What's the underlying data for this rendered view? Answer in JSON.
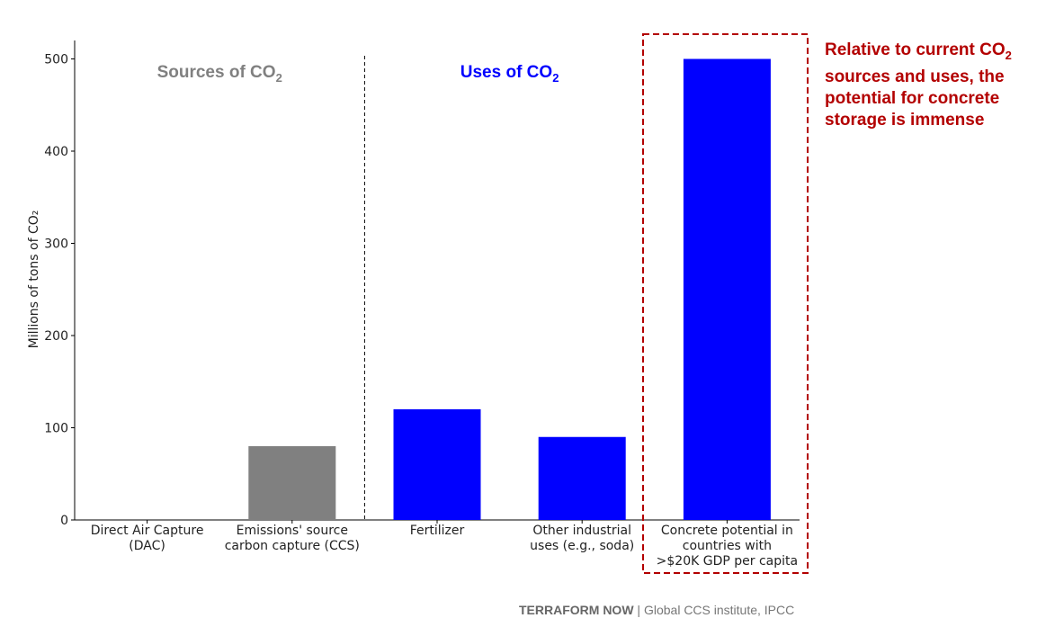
{
  "chart_data": {
    "type": "bar",
    "ylabel": "Millions of tons of CO₂",
    "ylim": [
      0,
      520
    ],
    "yticks": [
      0,
      100,
      200,
      300,
      400,
      500
    ],
    "categories": [
      [
        "Direct Air Capture",
        "(DAC)"
      ],
      [
        "Emissions' source",
        "carbon capture (CCS)"
      ],
      [
        "Fertilizer"
      ],
      [
        "Other industrial",
        "uses (e.g., soda)"
      ],
      [
        "Concrete potential in",
        "countries with",
        ">$20K GDP per capita"
      ]
    ],
    "values": [
      1,
      80,
      120,
      90,
      500
    ],
    "bar_colors": [
      "#808080",
      "#808080",
      "#0000ff",
      "#0000ff",
      "#0000ff"
    ],
    "sections": [
      {
        "label": "Sources of CO",
        "sub": "2",
        "color": "#808080"
      },
      {
        "label": "Uses of CO",
        "sub": "2",
        "color": "#0000ff"
      }
    ],
    "highlight_color": "#b30000"
  },
  "callout": {
    "line1": "Relative to current CO",
    "sub": "2",
    "rest": "sources and uses, the potential for concrete storage is immense"
  },
  "footer": {
    "brand": "TERRAFORM NOW",
    "source": " | Global CCS institute, IPCC"
  }
}
